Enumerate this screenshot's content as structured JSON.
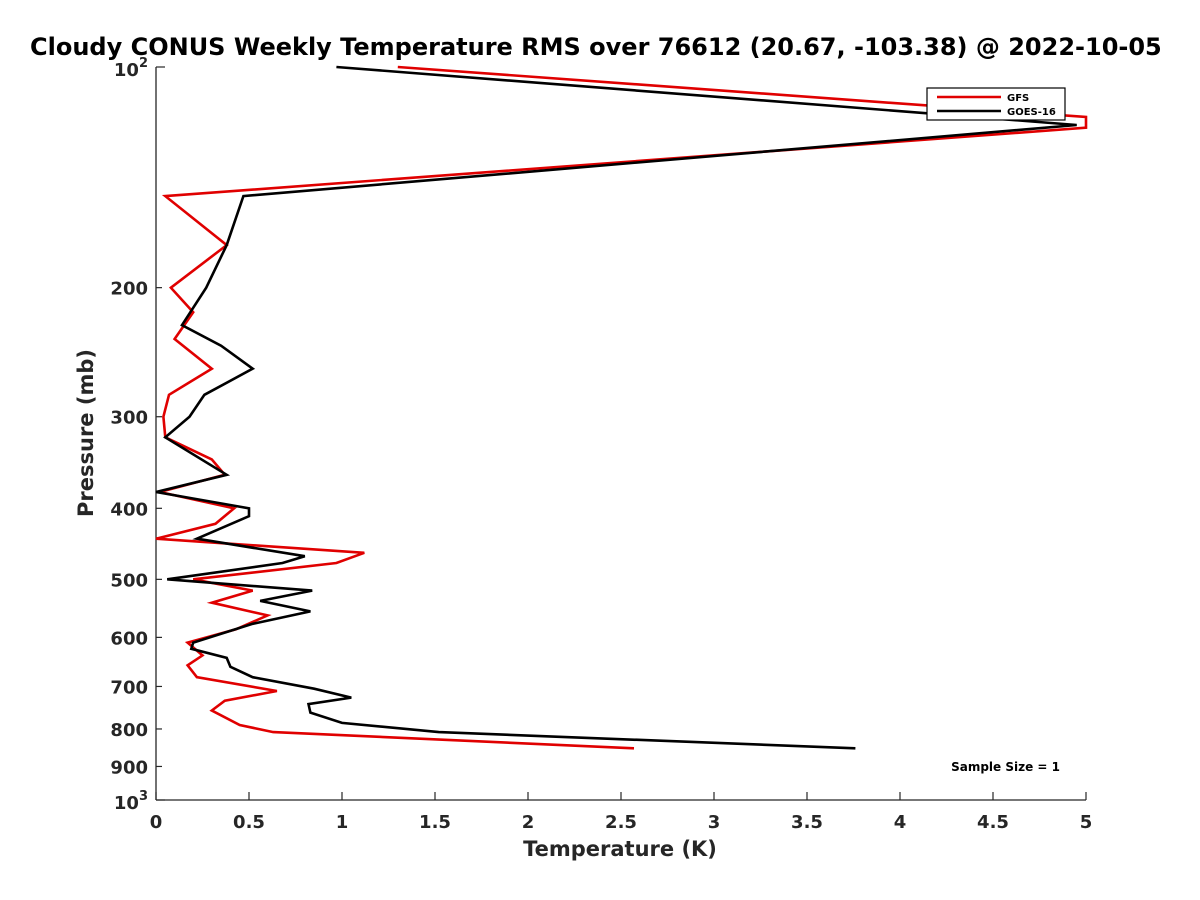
{
  "chart_data": {
    "type": "line",
    "title": "Cloudy CONUS Weekly Temperature RMS over 76612 (20.67, -103.38) @ 2022-10-05",
    "xlabel": "Temperature (K)",
    "ylabel": "Pressure (mb)",
    "xlim": [
      0,
      5
    ],
    "ylim": [
      100,
      1000
    ],
    "yscale": "log",
    "y_reversed": true,
    "xticks": [
      0,
      0.5,
      1,
      1.5,
      2,
      2.5,
      3,
      3.5,
      4,
      4.5,
      5
    ],
    "xtick_labels": [
      "0",
      "0.5",
      "1",
      "1.5",
      "2",
      "2.5",
      "3",
      "3.5",
      "4",
      "4.5",
      "5"
    ],
    "yticks": [
      {
        "value": 100,
        "base": "10",
        "exp": "2"
      },
      {
        "value": 200,
        "text": "200"
      },
      {
        "value": 300,
        "text": "300"
      },
      {
        "value": 400,
        "text": "400"
      },
      {
        "value": 500,
        "text": "500"
      },
      {
        "value": 600,
        "text": "600"
      },
      {
        "value": 700,
        "text": "700"
      },
      {
        "value": 800,
        "text": "800"
      },
      {
        "value": 900,
        "text": "900"
      },
      {
        "value": 1000,
        "base": "10",
        "exp": "3"
      }
    ],
    "legend": {
      "position": "top-right"
    },
    "series": [
      {
        "name": "GFS",
        "color": "#e00000",
        "points": [
          [
            1.3,
            100
          ],
          [
            5.0,
            117
          ],
          [
            5.0,
            121
          ],
          [
            0.05,
            150
          ],
          [
            0.38,
            175
          ],
          [
            0.08,
            200
          ],
          [
            0.2,
            216
          ],
          [
            0.1,
            235
          ],
          [
            0.3,
            258
          ],
          [
            0.07,
            280
          ],
          [
            0.04,
            300
          ],
          [
            0.05,
            320
          ],
          [
            0.3,
            343
          ],
          [
            0.37,
            360
          ],
          [
            0.02,
            380
          ],
          [
            0.42,
            400
          ],
          [
            0.32,
            420
          ],
          [
            0.0,
            440
          ],
          [
            1.12,
            460
          ],
          [
            0.97,
            475
          ],
          [
            0.2,
            500
          ],
          [
            0.52,
            518
          ],
          [
            0.3,
            538
          ],
          [
            0.6,
            560
          ],
          [
            0.43,
            585
          ],
          [
            0.17,
            610
          ],
          [
            0.25,
            635
          ],
          [
            0.17,
            655
          ],
          [
            0.22,
            680
          ],
          [
            0.65,
            710
          ],
          [
            0.37,
            732
          ],
          [
            0.3,
            755
          ],
          [
            0.45,
            790
          ],
          [
            0.63,
            808
          ],
          [
            2.57,
            850
          ]
        ]
      },
      {
        "name": "GOES-16",
        "color": "#000000",
        "points": [
          [
            0.97,
            100
          ],
          [
            4.95,
            120
          ],
          [
            0.47,
            150
          ],
          [
            0.38,
            175
          ],
          [
            0.27,
            200
          ],
          [
            0.14,
            225
          ],
          [
            0.35,
            240
          ],
          [
            0.52,
            258
          ],
          [
            0.26,
            280
          ],
          [
            0.18,
            300
          ],
          [
            0.05,
            320
          ],
          [
            0.38,
            360
          ],
          [
            0.0,
            380
          ],
          [
            0.5,
            400
          ],
          [
            0.5,
            410
          ],
          [
            0.22,
            440
          ],
          [
            0.8,
            465
          ],
          [
            0.68,
            475
          ],
          [
            0.06,
            500
          ],
          [
            0.84,
            518
          ],
          [
            0.56,
            535
          ],
          [
            0.83,
            553
          ],
          [
            0.52,
            575
          ],
          [
            0.2,
            610
          ],
          [
            0.19,
            622
          ],
          [
            0.38,
            640
          ],
          [
            0.4,
            658
          ],
          [
            0.52,
            680
          ],
          [
            0.85,
            705
          ],
          [
            1.05,
            725
          ],
          [
            0.82,
            740
          ],
          [
            0.83,
            760
          ],
          [
            1.0,
            785
          ],
          [
            1.52,
            808
          ],
          [
            3.76,
            850
          ]
        ]
      }
    ],
    "annotation": "Sample Size = 1"
  }
}
